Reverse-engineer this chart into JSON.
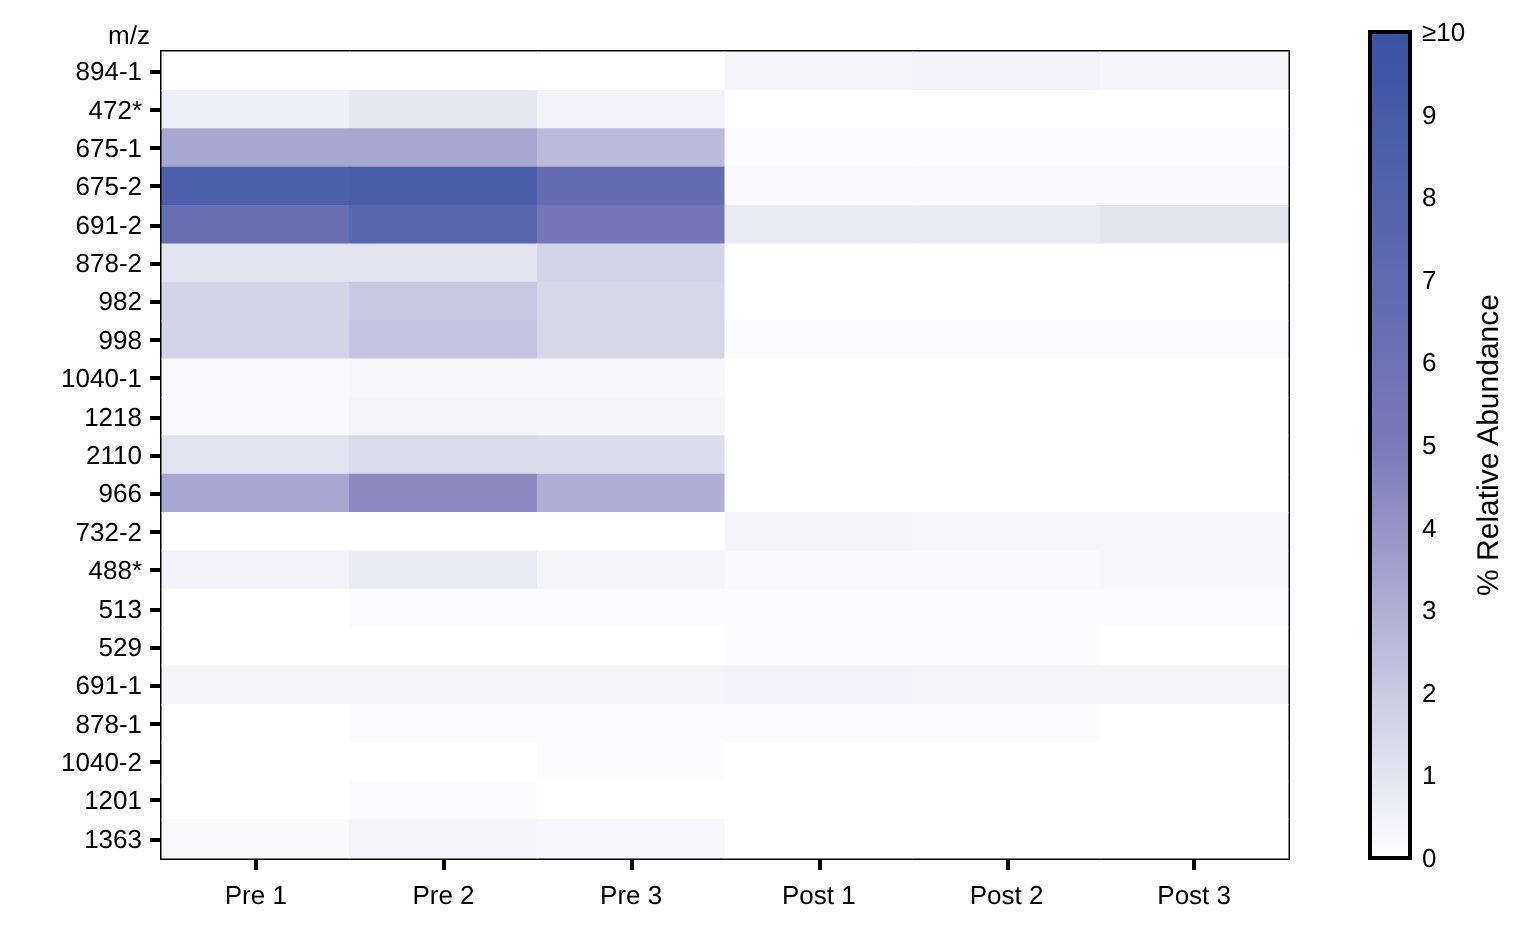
{
  "chart_data": {
    "type": "heatmap",
    "ylabel": "m/z",
    "clabel": "% Relative Abundance",
    "categories": [
      "Pre 1",
      "Pre 2",
      "Pre 3",
      "Post 1",
      "Post 2",
      "Post 3"
    ],
    "y_categories": [
      "894-1",
      "472*",
      "675-1",
      "675-2",
      "691-2",
      "878-2",
      "982",
      "998",
      "1040-1",
      "1218",
      "2110",
      "966",
      "732-2",
      "488*",
      "513",
      "529",
      "691-1",
      "878-1",
      "1040-2",
      "1201",
      "1363"
    ],
    "cells": [
      [
        0,
        0,
        0,
        0.4,
        0.5,
        0.4
      ],
      [
        0.6,
        0.9,
        0.5,
        0,
        0,
        0
      ],
      [
        3.3,
        3.3,
        2.6,
        0.1,
        0.1,
        0.1
      ],
      [
        8.5,
        8.7,
        6.8,
        0.2,
        0.2,
        0.2
      ],
      [
        6.5,
        7.5,
        5.5,
        0.8,
        0.8,
        1
      ],
      [
        1,
        1,
        1.6,
        0,
        0,
        0
      ],
      [
        1.6,
        2.1,
        1.5,
        0,
        0,
        0
      ],
      [
        1.6,
        2.2,
        1.5,
        0.1,
        0.1,
        0.1
      ],
      [
        0.2,
        0.3,
        0.3,
        0,
        0,
        0
      ],
      [
        0.2,
        0.4,
        0.4,
        0,
        0,
        0
      ],
      [
        1.1,
        1.4,
        1.3,
        0,
        0,
        0
      ],
      [
        3.3,
        4.4,
        3,
        0,
        0,
        0
      ],
      [
        0,
        0,
        0,
        0.4,
        0.3,
        0.3
      ],
      [
        0.5,
        0.8,
        0.4,
        0.2,
        0.2,
        0.3
      ],
      [
        0,
        0.1,
        0.1,
        0.1,
        0.1,
        0.1
      ],
      [
        0,
        0,
        0,
        0.1,
        0.1,
        0
      ],
      [
        0.4,
        0.4,
        0.4,
        0.5,
        0.4,
        0.4
      ],
      [
        0,
        0.1,
        0.1,
        0.1,
        0.1,
        0
      ],
      [
        0,
        0,
        0.1,
        0,
        0,
        0
      ],
      [
        0,
        0.1,
        0,
        0,
        0,
        0
      ],
      [
        0.2,
        0.4,
        0.3,
        0,
        0,
        0
      ]
    ],
    "clim": [
      0,
      10
    ],
    "cticks": [
      0,
      1,
      2,
      3,
      4,
      5,
      6,
      7,
      8,
      9,
      {
        "value": 10,
        "label": "≥10"
      }
    ]
  }
}
